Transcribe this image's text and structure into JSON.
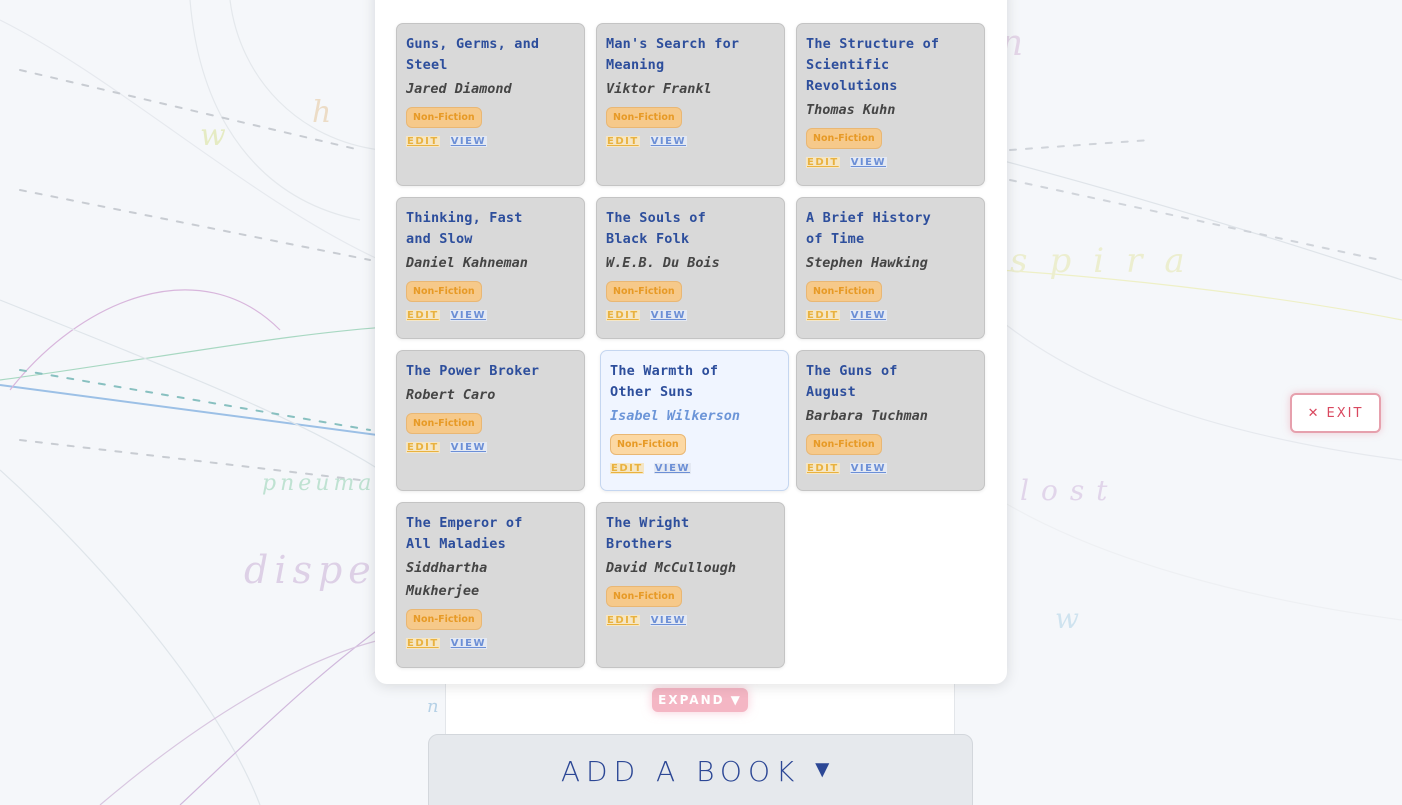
{
  "books": [
    {
      "title": "Guns, Germs, and Steel",
      "author": "Jared Diamond",
      "genre": "Non-Fiction"
    },
    {
      "title": "Man's Search for Meaning",
      "author": "Viktor Frankl",
      "genre": "Non-Fiction"
    },
    {
      "title": "The Structure of Scientific Revolutions",
      "author": "Thomas Kuhn",
      "genre": "Non-Fiction"
    },
    {
      "title": "Thinking, Fast and Slow",
      "author": "Daniel Kahneman",
      "genre": "Non-Fiction"
    },
    {
      "title": "The Souls of Black Folk",
      "author": "W.E.B. Du Bois",
      "genre": "Non-Fiction"
    },
    {
      "title": "A Brief History of Time",
      "author": "Stephen Hawking",
      "genre": "Non-Fiction"
    },
    {
      "title": "The Power Broker",
      "author": "Robert Caro",
      "genre": "Non-Fiction"
    },
    {
      "title": "The Warmth of Other Suns",
      "author": "Isabel Wilkerson",
      "genre": "Non-Fiction"
    },
    {
      "title": "The Guns of August",
      "author": "Barbara Tuchman",
      "genre": "Non-Fiction"
    },
    {
      "title": "The Emperor of All Maladies",
      "author": "Siddhartha Mukherjee",
      "genre": "Non-Fiction"
    },
    {
      "title": "The Wright Brothers",
      "author": "David McCullough",
      "genre": "Non-Fiction"
    }
  ],
  "card_actions": {
    "edit": "EDIT",
    "view": "VIEW"
  },
  "expand_label": "EXPAND",
  "expand_icon": "▼",
  "add_book_label": "ADD A BOOK",
  "add_book_icon": "▼",
  "exit_label": "EXIT",
  "exit_icon": "✕",
  "background_words": [
    "w",
    "h",
    "n",
    "pneuma",
    "dispe",
    "lost",
    "spira",
    "w",
    "n"
  ],
  "colors": {
    "title": "#2d4e9c",
    "badge": "#e79a26",
    "exit": "#d9485f",
    "add_book": "#2c4795"
  }
}
